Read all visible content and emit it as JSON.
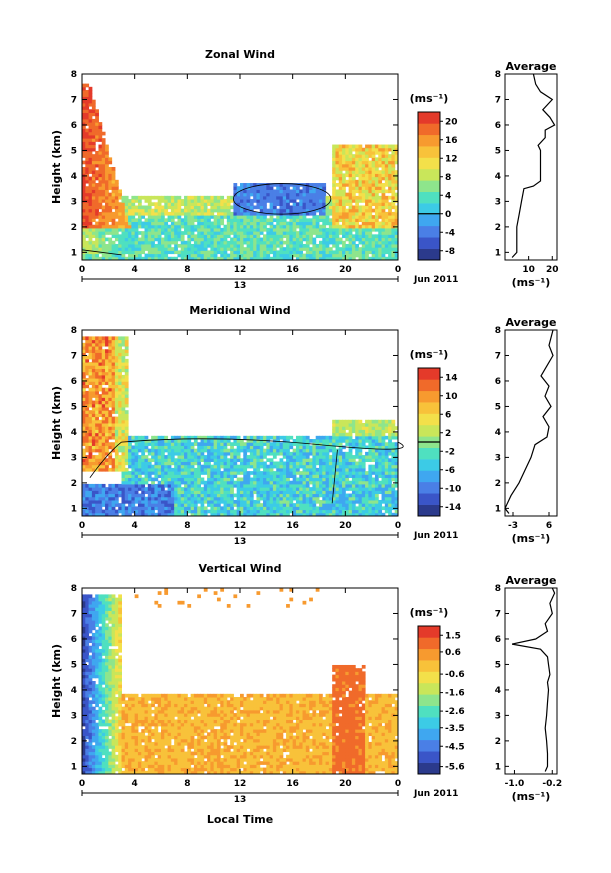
{
  "date_label": "Jun 2011",
  "x_axis_title": "Local Time",
  "panels": [
    {
      "id": "zonal",
      "title": "Zonal Wind",
      "ylabel": "Height (km)",
      "day_label": "13",
      "units": "(ms⁻¹)",
      "profile_title": "Average",
      "profile_units": "(ms⁻¹)"
    },
    {
      "id": "meridional",
      "title": "Meridional Wind",
      "ylabel": "Height (km)",
      "day_label": "13",
      "units": "(ms⁻¹)",
      "profile_title": "Average",
      "profile_units": "(ms⁻¹)"
    },
    {
      "id": "vertical",
      "title": "Vertical Wind",
      "ylabel": "Height (km)",
      "day_label": "13",
      "units": "(ms⁻¹)",
      "profile_title": "Average",
      "profile_units": "(ms⁻¹)"
    }
  ],
  "colors": {
    "scale": [
      "#2b3a8c",
      "#3a55c8",
      "#4a7fe6",
      "#3fa7f0",
      "#3ccbe6",
      "#4fe0c0",
      "#8ee58c",
      "#c9e65a",
      "#f3e04a",
      "#f8c23a",
      "#f79a2f",
      "#f06a2a",
      "#e43a2a"
    ]
  },
  "chart_data": [
    {
      "type": "heatmap",
      "title": "Zonal Wind",
      "ylabel": "Height (km)",
      "xlabel": "",
      "x_ticks": [
        "0",
        "4",
        "8",
        "12",
        "16",
        "20",
        "0"
      ],
      "x_range_hours": [
        0,
        24
      ],
      "y_range_km": [
        0.7,
        8.0
      ],
      "y_ticks": [
        "1",
        "2",
        "3",
        "4",
        "5",
        "6",
        "7",
        "8"
      ],
      "colorbar_ticks": [
        "-8",
        "-4",
        "0",
        "4",
        "8",
        "12",
        "16",
        "20"
      ],
      "colorbar_range": [
        -10,
        22
      ],
      "zero_contour": true,
      "features": [
        {
          "region": "near-surface after midnight 0-4 LT, 1-7.5 km",
          "value_range": [
            12,
            22
          ]
        },
        {
          "region": "12-19 LT, 2.5-3.7 km",
          "value_range": [
            -6,
            -1
          ]
        },
        {
          "region": "0-24 LT below 2.5 km",
          "value_range": [
            2,
            8
          ]
        },
        {
          "region": "19-24 LT, 2-5 km",
          "value_range": [
            8,
            18
          ]
        }
      ],
      "profile": {
        "title": "Average",
        "x_ticks": [
          "10",
          "20"
        ],
        "x_range": [
          0,
          22
        ],
        "heights": [
          0.8,
          1.0,
          1.5,
          2.0,
          2.5,
          3.0,
          3.5,
          3.6,
          3.8,
          4.2,
          4.6,
          5.0,
          5.2,
          5.5,
          5.8,
          6.0,
          6.3,
          6.6,
          7.0,
          7.3,
          7.6,
          8.0
        ],
        "values": [
          3,
          5,
          5,
          5,
          6,
          7,
          8,
          12,
          15,
          15,
          15,
          15,
          14,
          17,
          17,
          21,
          19,
          16,
          20,
          15,
          13,
          12
        ]
      }
    },
    {
      "type": "heatmap",
      "title": "Meridional Wind",
      "ylabel": "Height (km)",
      "x_ticks": [
        "0",
        "4",
        "8",
        "12",
        "16",
        "20",
        "0"
      ],
      "x_range_hours": [
        0,
        24
      ],
      "y_range_km": [
        0.7,
        8.0
      ],
      "y_ticks": [
        "1",
        "2",
        "3",
        "4",
        "5",
        "6",
        "7",
        "8"
      ],
      "colorbar_ticks": [
        "-14",
        "-10",
        "-6",
        "-2",
        "2",
        "6",
        "10",
        "14"
      ],
      "colorbar_range": [
        -16,
        16
      ],
      "zero_contour": true,
      "features": [
        {
          "region": "0-3 LT, 2.5-6 km",
          "value_range": [
            8,
            16
          ]
        },
        {
          "region": "3-24 LT, 1-3.7 km",
          "value_range": [
            -10,
            -2
          ]
        },
        {
          "region": "0-6 LT below 2 km",
          "value_range": [
            -14,
            -8
          ]
        }
      ],
      "profile": {
        "title": "Average",
        "x_ticks": [
          "-3",
          "6"
        ],
        "x_range": [
          -5,
          8
        ],
        "heights": [
          0.8,
          1.0,
          1.5,
          2.0,
          2.5,
          3.0,
          3.5,
          3.8,
          4.2,
          4.6,
          5.0,
          5.4,
          5.8,
          6.2,
          6.6,
          7.0,
          7.4,
          8.0
        ],
        "values": [
          -4,
          -5,
          -3.5,
          -1.5,
          0,
          1.5,
          2.5,
          5.5,
          6.0,
          4.5,
          6.5,
          5.0,
          6.0,
          4.0,
          5.5,
          7.0,
          6.0,
          7.0
        ]
      }
    },
    {
      "type": "heatmap",
      "title": "Vertical Wind",
      "ylabel": "Height (km)",
      "xlabel": "Local Time",
      "x_ticks": [
        "0",
        "4",
        "8",
        "12",
        "16",
        "20",
        "0"
      ],
      "x_range_hours": [
        0,
        24
      ],
      "y_range_km": [
        0.7,
        8.0
      ],
      "y_ticks": [
        "1",
        "2",
        "3",
        "4",
        "5",
        "6",
        "7",
        "8"
      ],
      "colorbar_ticks": [
        "-5.6",
        "-4.5",
        "-3.5",
        "-2.6",
        "-1.6",
        "-0.6",
        "0.6",
        "1.5"
      ],
      "colorbar_range": [
        -6,
        2
      ],
      "zero_contour": false,
      "features": [
        {
          "region": "0-3 LT, 1-7 km",
          "value_range": [
            -6,
            -2
          ]
        },
        {
          "region": "3-24 LT, 1-3.8 km",
          "value_range": [
            -0.6,
            0.6
          ]
        },
        {
          "region": "19-21 LT, 1-5 km",
          "value_range": [
            0.6,
            1.5
          ]
        }
      ],
      "profile": {
        "title": "Average",
        "x_ticks": [
          "-1.0",
          "-0.2"
        ],
        "x_range": [
          -1.2,
          -0.1
        ],
        "heights": [
          0.8,
          1.0,
          1.5,
          2.0,
          2.5,
          3.0,
          3.5,
          4.0,
          4.3,
          4.6,
          5.0,
          5.3,
          5.6,
          5.8,
          6.0,
          6.3,
          6.6,
          7.0,
          7.4,
          7.8,
          8.0
        ],
        "values": [
          -0.35,
          -0.3,
          -0.3,
          -0.32,
          -0.35,
          -0.32,
          -0.3,
          -0.28,
          -0.3,
          -0.25,
          -0.28,
          -0.3,
          -0.45,
          -1.05,
          -0.55,
          -0.3,
          -0.35,
          -0.2,
          -0.25,
          -0.15,
          -0.2
        ]
      }
    }
  ]
}
